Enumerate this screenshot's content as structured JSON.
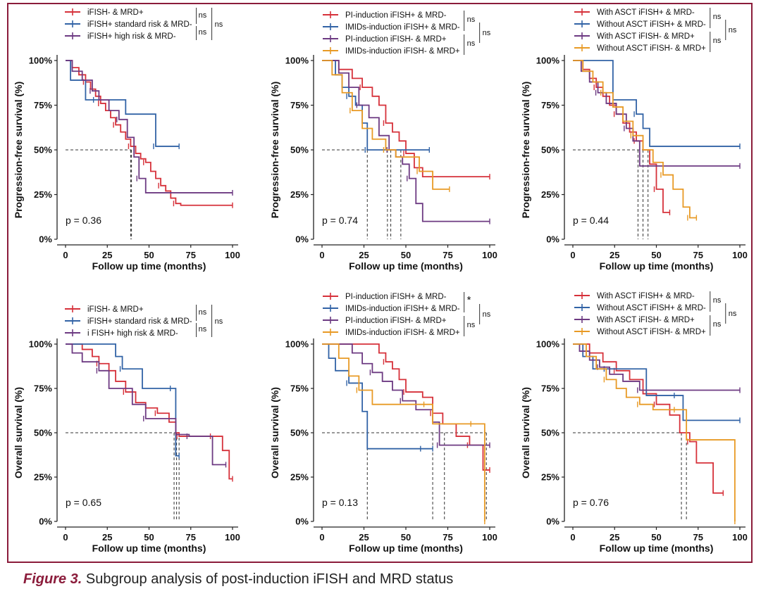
{
  "colors": {
    "red": "#d6313a",
    "blue": "#3263a6",
    "purple": "#6d3a82",
    "orange": "#e89a25",
    "frame": "#8b1c3b"
  },
  "caption": {
    "label": "Figure 3.",
    "text": "Subgroup analysis of post-induction iFISH and MRD status"
  },
  "chart_data": [
    {
      "type": "line",
      "id": "pfs-ifish",
      "xlabel": "Follow up time (months)",
      "ylabel": "Progression-free survival (%)",
      "xlim": [
        0,
        100
      ],
      "ylim": [
        0,
        100
      ],
      "xticks": [
        "0",
        "25",
        "50",
        "75",
        "100"
      ],
      "yticks": [
        "0%",
        "25%",
        "50%",
        "75%",
        "100%"
      ],
      "pvalue": "p = 0.36",
      "median_line": 50,
      "median_x": [
        39,
        39.5
      ],
      "series": [
        {
          "name": "iFISH- & MRD+",
          "color": "red",
          "x": [
            0,
            4,
            8,
            12,
            15,
            18,
            21,
            24,
            27,
            30,
            33,
            36,
            39,
            42,
            45,
            48,
            51,
            54,
            57,
            60,
            63,
            66,
            69,
            100
          ],
          "y": [
            100,
            96,
            92,
            88,
            84,
            80,
            76,
            72,
            68,
            64,
            60,
            56,
            52,
            48,
            45,
            43,
            38,
            34,
            30,
            27,
            23,
            20,
            19,
            19
          ]
        },
        {
          "name": "iFISH+ standard risk & MRD-",
          "color": "blue",
          "x": [
            0,
            3,
            12,
            18,
            36,
            48,
            54,
            65,
            68
          ],
          "y": [
            100,
            89,
            78,
            78,
            70,
            70,
            52,
            52,
            52
          ]
        },
        {
          "name": "iFISH+ high risk & MRD-",
          "color": "purple",
          "x": [
            0,
            4,
            10,
            16,
            20,
            26,
            32,
            37,
            41,
            44,
            48,
            60,
            100
          ],
          "y": [
            100,
            94,
            89,
            83,
            78,
            72,
            67,
            57,
            46,
            34,
            26,
            26,
            26
          ]
        }
      ],
      "legend": [
        "iFISH- & MRD+",
        "iFISH+ standard risk & MRD-",
        "iFISH+ high risk & MRD-"
      ],
      "comparisons": [
        "ns",
        "ns",
        "ns"
      ]
    },
    {
      "type": "line",
      "id": "pfs-induction",
      "xlabel": "Follow up time (months)",
      "ylabel": "Progression-free survival (%)",
      "xlim": [
        0,
        100
      ],
      "ylim": [
        0,
        100
      ],
      "xticks": [
        "0",
        "25",
        "50",
        "75",
        "100"
      ],
      "yticks": [
        "0%",
        "25%",
        "50%",
        "75%",
        "100%"
      ],
      "pvalue": "p = 0.74",
      "median_line": 50,
      "median_x": [
        27,
        39,
        41,
        47
      ],
      "series": [
        {
          "name": "PI-induction iFISH+ & MRD-",
          "color": "red",
          "x": [
            0,
            10,
            18,
            24,
            30,
            34,
            38,
            42,
            46,
            50,
            55,
            60,
            100
          ],
          "y": [
            100,
            95,
            90,
            85,
            80,
            75,
            65,
            60,
            55,
            48,
            40,
            35,
            35
          ]
        },
        {
          "name": "IMIDs-induction iFISH+ & MRD-",
          "color": "blue",
          "x": [
            0,
            8,
            12,
            16,
            20,
            24,
            27,
            40,
            64
          ],
          "y": [
            100,
            92,
            85,
            80,
            75,
            65,
            50,
            50,
            50
          ]
        },
        {
          "name": "PI-induction iFISH- & MRD+",
          "color": "purple",
          "x": [
            0,
            10,
            16,
            22,
            28,
            34,
            40,
            44,
            48,
            52,
            56,
            60,
            100
          ],
          "y": [
            100,
            93,
            85,
            75,
            68,
            58,
            50,
            46,
            42,
            34,
            20,
            10,
            10
          ]
        },
        {
          "name": "IMIDs-induction iFISH- & MRD+",
          "color": "orange",
          "x": [
            0,
            6,
            12,
            18,
            24,
            30,
            38,
            44,
            50,
            58,
            66,
            76
          ],
          "y": [
            100,
            92,
            82,
            72,
            62,
            56,
            50,
            46,
            46,
            38,
            28,
            28
          ]
        }
      ],
      "legend": [
        "PI-induction iFISH+ & MRD-",
        "IMIDs-induction iFISH+ & MRD-",
        "PI-induction iFISH- & MRD+",
        "IMIDs-induction iFISH- & MRD+"
      ],
      "comparisons": [
        "ns",
        "ns",
        "ns"
      ]
    },
    {
      "type": "line",
      "id": "pfs-asct",
      "xlabel": "Follow up time (months)",
      "ylabel": "Progression-free survival (%)",
      "xlim": [
        0,
        100
      ],
      "ylim": [
        0,
        100
      ],
      "xticks": [
        "0",
        "25",
        "50",
        "75",
        "100"
      ],
      "yticks": [
        "0%",
        "25%",
        "50%",
        "75%",
        "100%"
      ],
      "pvalue": "p = 0.44",
      "median_line": 50,
      "median_x": [
        39,
        42,
        45
      ],
      "series": [
        {
          "name": "With ASCT iFISH+ & MRD-",
          "color": "red",
          "x": [
            0,
            6,
            10,
            14,
            18,
            22,
            26,
            30,
            34,
            38,
            42,
            46,
            50,
            54,
            58
          ],
          "y": [
            100,
            95,
            90,
            85,
            80,
            75,
            70,
            65,
            60,
            55,
            50,
            42,
            28,
            15,
            15
          ]
        },
        {
          "name": "Without ASCT iFISH+ & MRD-",
          "color": "blue",
          "x": [
            0,
            18,
            24,
            38,
            42,
            46,
            100
          ],
          "y": [
            100,
            100,
            78,
            70,
            62,
            52,
            52
          ]
        },
        {
          "name": "With ASCT iFISH- & MRD+",
          "color": "purple",
          "x": [
            0,
            5,
            10,
            15,
            20,
            26,
            32,
            36,
            40,
            100
          ],
          "y": [
            100,
            94,
            88,
            82,
            76,
            70,
            62,
            55,
            41,
            41
          ]
        },
        {
          "name": "Without ASCT iFISH- & MRD+",
          "color": "orange",
          "x": [
            0,
            6,
            12,
            18,
            24,
            30,
            36,
            42,
            48,
            54,
            60,
            66,
            70,
            74
          ],
          "y": [
            100,
            94,
            88,
            82,
            74,
            66,
            58,
            50,
            43,
            36,
            28,
            18,
            12,
            12
          ]
        }
      ],
      "legend": [
        "With ASCT iFISH+ & MRD-",
        "Without ASCT iFISH+ & MRD-",
        "With ASCT iFISH- & MRD+",
        "Without ASCT iFISH- & MRD+"
      ],
      "comparisons": [
        "ns",
        "ns",
        "ns"
      ]
    },
    {
      "type": "line",
      "id": "os-ifish",
      "xlabel": "Follow up time (months)",
      "ylabel": "Overall survival (%)",
      "xlim": [
        0,
        100
      ],
      "ylim": [
        0,
        100
      ],
      "xticks": [
        "0",
        "25",
        "50",
        "75",
        "100"
      ],
      "yticks": [
        "0%",
        "25%",
        "50%",
        "75%",
        "100%"
      ],
      "pvalue": "p = 0.65",
      "median_line": 50,
      "median_x": [
        65,
        66.5,
        68
      ],
      "series": [
        {
          "name": "iFISH- & MRD+",
          "color": "red",
          "x": [
            0,
            10,
            16,
            20,
            26,
            30,
            36,
            42,
            48,
            55,
            62,
            66,
            68,
            72,
            80,
            88,
            94,
            98,
            100
          ],
          "y": [
            100,
            97,
            93,
            89,
            85,
            79,
            73,
            67,
            64,
            61,
            56,
            50,
            48,
            48,
            48,
            48,
            40,
            24,
            24
          ]
        },
        {
          "name": "iFISH+ standard risk & MRD-",
          "color": "blue",
          "x": [
            0,
            18,
            30,
            34,
            46,
            50,
            64,
            66,
            68
          ],
          "y": [
            100,
            100,
            93,
            86,
            75,
            75,
            75,
            37,
            37
          ]
        },
        {
          "name": "i FISH+ high risk & MRD-",
          "color": "purple",
          "x": [
            0,
            4,
            10,
            20,
            26,
            40,
            48,
            60,
            66,
            74,
            88,
            96
          ],
          "y": [
            100,
            95,
            90,
            85,
            75,
            66,
            58,
            58,
            49,
            48,
            32,
            32
          ]
        }
      ],
      "legend": [
        "iFISH- & MRD+",
        "iFISH+ standard risk & MRD-",
        "i FISH+ high risk & MRD-"
      ],
      "comparisons": [
        "ns",
        "ns",
        "ns"
      ]
    },
    {
      "type": "line",
      "id": "os-induction",
      "xlabel": "Follow up time (months)",
      "ylabel": "Overall survival (%)",
      "xlim": [
        0,
        100
      ],
      "ylim": [
        0,
        100
      ],
      "xticks": [
        "0",
        "25",
        "50",
        "75",
        "100"
      ],
      "yticks": [
        "0%",
        "25%",
        "50%",
        "75%",
        "100%"
      ],
      "pvalue": "p = 0.13",
      "median_line": 50,
      "median_x": [
        27,
        66,
        73,
        97,
        98
      ],
      "series": [
        {
          "name": "PI-induction iFISH+ & MRD-",
          "color": "red",
          "x": [
            0,
            30,
            34,
            38,
            42,
            46,
            50,
            55,
            60,
            66,
            72,
            80,
            88,
            96,
            100
          ],
          "y": [
            100,
            100,
            95,
            90,
            86,
            80,
            73,
            73,
            70,
            61,
            55,
            48,
            43,
            29,
            29
          ]
        },
        {
          "name": "IMIDs-induction iFISH+ & MRD-",
          "color": "blue",
          "x": [
            0,
            4,
            8,
            16,
            24,
            27,
            60,
            66
          ],
          "y": [
            100,
            92,
            85,
            78,
            62,
            41,
            41,
            41
          ]
        },
        {
          "name": "PI-induction iFISH- & MRD+",
          "color": "purple",
          "x": [
            0,
            18,
            24,
            30,
            36,
            42,
            48,
            56,
            66,
            70,
            100
          ],
          "y": [
            100,
            95,
            89,
            84,
            79,
            74,
            68,
            63,
            56,
            43,
            43
          ]
        },
        {
          "name": "IMIDs-induction iFISH- & MRD+",
          "color": "orange",
          "x": [
            0,
            10,
            16,
            22,
            30,
            38,
            62,
            66,
            72,
            90,
            97
          ],
          "y": [
            100,
            92,
            82,
            74,
            66,
            66,
            66,
            55,
            55,
            55,
            0
          ]
        }
      ],
      "legend": [
        "PI-induction iFISH+ & MRD-",
        "IMIDs-induction iFISH+ & MRD-",
        "PI-induction iFISH- & MRD+",
        "IMIDs-induction iFISH- & MRD+"
      ],
      "comparisons": [
        "*",
        "ns",
        "ns"
      ]
    },
    {
      "type": "line",
      "id": "os-asct",
      "xlabel": "Follow up time (months)",
      "ylabel": "Overall survival (%)",
      "xlim": [
        0,
        100
      ],
      "ylim": [
        0,
        100
      ],
      "xticks": [
        "0",
        "25",
        "50",
        "75",
        "100"
      ],
      "yticks": [
        "0%",
        "25%",
        "50%",
        "75%",
        "100%"
      ],
      "pvalue": "p = 0.76",
      "median_line": 50,
      "median_x": [
        65,
        68
      ],
      "series": [
        {
          "name": "With ASCT iFISH+ & MRD-",
          "color": "red",
          "x": [
            0,
            10,
            18,
            26,
            34,
            42,
            50,
            58,
            64,
            70,
            74,
            84,
            90
          ],
          "y": [
            100,
            95,
            90,
            85,
            80,
            72,
            66,
            60,
            50,
            45,
            33,
            16,
            16
          ]
        },
        {
          "name": "Without ASCT iFISH+ & MRD-",
          "color": "blue",
          "x": [
            0,
            6,
            12,
            20,
            30,
            44,
            62,
            66,
            100
          ],
          "y": [
            100,
            93,
            86,
            86,
            86,
            71,
            71,
            57,
            57
          ]
        },
        {
          "name": "With ASCT iFISH- & MRD+",
          "color": "purple",
          "x": [
            0,
            4,
            10,
            16,
            22,
            30,
            40,
            46,
            100
          ],
          "y": [
            100,
            96,
            91,
            87,
            83,
            79,
            74,
            74,
            74
          ]
        },
        {
          "name": "Without ASCT iFISH- & MRD+",
          "color": "orange",
          "x": [
            0,
            8,
            14,
            20,
            26,
            32,
            40,
            48,
            56,
            62,
            68,
            96,
            97
          ],
          "y": [
            100,
            93,
            86,
            80,
            75,
            70,
            66,
            63,
            63,
            63,
            46,
            46,
            0
          ]
        }
      ],
      "legend": [
        "With ASCT iFISH+ & MRD-",
        "Without ASCT iFISH+ & MRD-",
        "With ASCT iFISH- & MRD+",
        "Without ASCT iFISH- & MRD+"
      ],
      "comparisons": [
        "ns",
        "ns",
        "ns"
      ]
    }
  ]
}
